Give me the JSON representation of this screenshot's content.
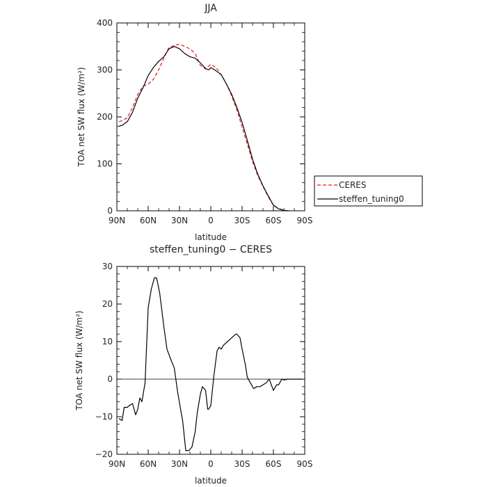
{
  "chart_data": [
    {
      "type": "line",
      "title": "JJA",
      "xlabel": "latitude",
      "ylabel": "TOA net SW flux (W/m²)",
      "xlim": [
        90,
        -90
      ],
      "ylim": [
        0,
        400
      ],
      "x_ticks": [
        90,
        60,
        30,
        0,
        -30,
        -60,
        -90
      ],
      "x_tick_labels": [
        "90N",
        "60N",
        "30N",
        "0",
        "30S",
        "60S",
        "90S"
      ],
      "y_ticks": [
        0,
        100,
        200,
        300,
        400
      ],
      "y_tick_labels": [
        "0",
        "100",
        "200",
        "300",
        "400"
      ],
      "legend": "outside-right",
      "series": [
        {
          "name": "CERES",
          "color": "#e8141c",
          "dash": "dashed",
          "x": [
            88,
            85,
            80,
            75,
            70,
            65,
            60,
            55,
            50,
            45,
            40,
            35,
            30,
            25,
            20,
            15,
            10,
            5,
            2,
            0,
            -5,
            -10,
            -15,
            -20,
            -25,
            -30,
            -35,
            -40,
            -45,
            -50,
            -55,
            -60,
            -65,
            -70,
            -75
          ],
          "y": [
            190,
            192,
            198,
            220,
            248,
            265,
            270,
            280,
            300,
            325,
            348,
            352,
            355,
            350,
            345,
            335,
            310,
            302,
            308,
            312,
            305,
            290,
            270,
            245,
            215,
            178,
            142,
            105,
            75,
            52,
            30,
            12,
            5,
            1,
            0
          ]
        },
        {
          "name": "steffen_tuning0",
          "color": "#000000",
          "dash": "solid",
          "x": [
            88,
            85,
            80,
            75,
            70,
            65,
            60,
            55,
            50,
            45,
            40,
            35,
            30,
            25,
            20,
            15,
            10,
            5,
            2,
            0,
            -5,
            -10,
            -15,
            -20,
            -25,
            -30,
            -35,
            -40,
            -45,
            -50,
            -55,
            -60,
            -65,
            -70,
            -75
          ],
          "y": [
            180,
            182,
            190,
            210,
            240,
            262,
            288,
            305,
            318,
            328,
            345,
            350,
            345,
            335,
            328,
            325,
            315,
            303,
            300,
            305,
            298,
            290,
            270,
            248,
            220,
            188,
            150,
            110,
            78,
            53,
            32,
            12,
            4,
            1,
            0
          ]
        }
      ]
    },
    {
      "type": "line",
      "title": "steffen_tuning0 − CERES",
      "xlabel": "latitude",
      "ylabel": "TOA net SW flux (W/m²)",
      "xlim": [
        90,
        -90
      ],
      "ylim": [
        -20,
        30
      ],
      "x_ticks": [
        90,
        60,
        30,
        0,
        -30,
        -60,
        -90
      ],
      "x_tick_labels": [
        "90N",
        "60N",
        "30N",
        "0",
        "30S",
        "60S",
        "90S"
      ],
      "y_ticks": [
        -20,
        -10,
        0,
        10,
        20,
        30
      ],
      "y_tick_labels": [
        "−20",
        "−10",
        "0",
        "10",
        "20",
        "30"
      ],
      "series": [
        {
          "color": "#000000",
          "dash": "solid",
          "x": [
            88,
            85,
            83,
            80,
            78,
            75,
            72,
            70,
            68,
            66,
            63,
            60,
            57,
            54,
            52,
            49,
            45,
            42,
            38,
            35,
            32,
            29,
            27,
            24,
            21,
            18,
            15,
            13,
            10,
            8,
            5,
            3,
            2,
            0,
            -3,
            -6,
            -8,
            -10,
            -12,
            -14,
            -16,
            -18,
            -20,
            -22,
            -24,
            -25,
            -28,
            -30,
            -33,
            -35,
            -38,
            -41,
            -44,
            -47,
            -50,
            -53,
            -56,
            -60,
            -63,
            -65,
            -68,
            -70,
            -74,
            -80,
            -85,
            -88
          ],
          "y": [
            -10.5,
            -11,
            -7.5,
            -7.5,
            -7,
            -6.5,
            -9.5,
            -8,
            -5,
            -6,
            -1,
            19,
            24,
            27,
            27,
            23,
            14,
            8,
            5,
            3,
            -3,
            -8,
            -11,
            -19,
            -19,
            -18,
            -14,
            -9,
            -4,
            -2,
            -3,
            -8,
            -8,
            -7,
            1,
            7.5,
            8.5,
            8,
            9,
            9.5,
            10,
            10.5,
            11,
            11.5,
            12,
            12,
            11,
            8,
            4,
            0.5,
            -1,
            -2.5,
            -2,
            -2,
            -1.5,
            -1,
            0,
            -3,
            -1.5,
            -1.5,
            0,
            -0.2,
            0,
            0,
            0,
            0
          ]
        }
      ]
    }
  ]
}
